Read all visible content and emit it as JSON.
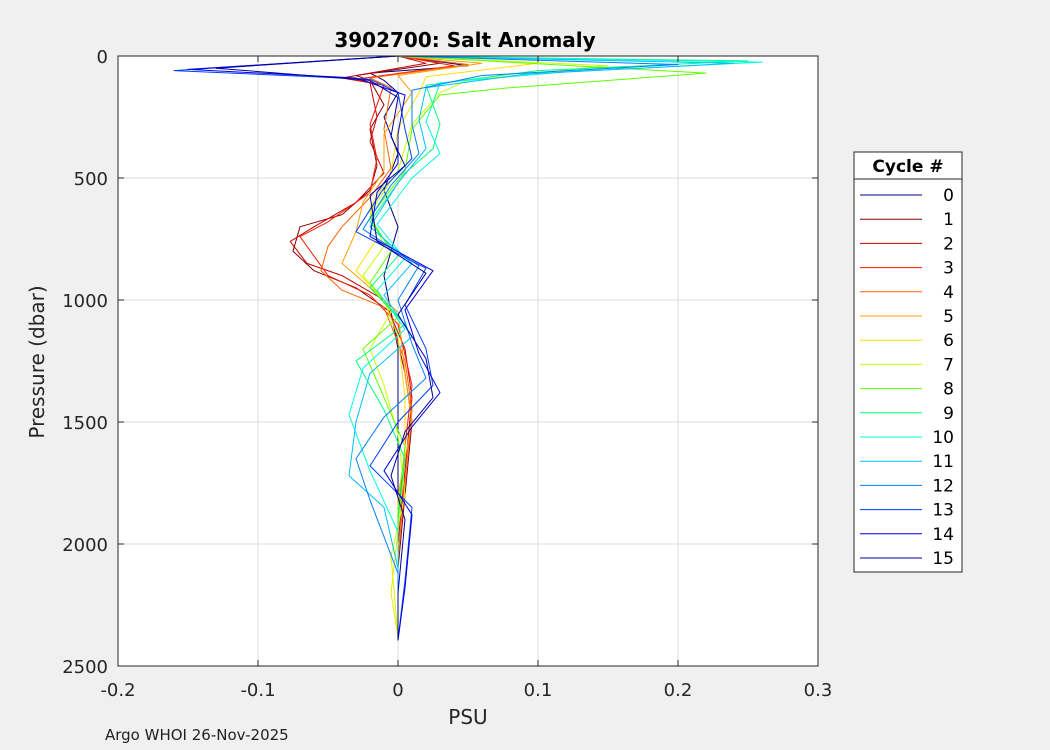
{
  "chart_data": {
    "type": "line",
    "title": "3902700: Salt Anomaly",
    "xlabel": "PSU",
    "ylabel": "Pressure (dbar)",
    "xlim": [
      -0.2,
      0.3
    ],
    "ylim": [
      0,
      2500
    ],
    "y_reversed": true,
    "grid": true,
    "xticks": [
      -0.2,
      -0.1,
      0,
      0.1,
      0.2,
      0.3
    ],
    "xtick_labels": [
      "-0.2",
      "-0.1",
      "0",
      "0.1",
      "0.2",
      "0.3"
    ],
    "yticks": [
      0,
      500,
      1000,
      1500,
      2000,
      2500
    ],
    "ytick_labels": [
      "0",
      "500",
      "1000",
      "1500",
      "2000",
      "2500"
    ],
    "legend_title": "Cycle #",
    "legend_position": "right-outside",
    "series": [
      {
        "name": "0",
        "color": "#00007f",
        "points": [
          [
            0.0,
            0
          ],
          [
            0.05,
            40
          ],
          [
            -0.02,
            70
          ],
          [
            -0.01,
            100
          ],
          [
            0.0,
            150
          ],
          [
            -0.01,
            250
          ],
          [
            0.0,
            400
          ],
          [
            -0.01,
            550
          ],
          [
            0.0,
            700
          ],
          [
            -0.01,
            900
          ],
          [
            0.0,
            1200
          ],
          [
            0.0,
            1600
          ],
          [
            0.0,
            2000
          ],
          [
            0.0,
            2390
          ]
        ]
      },
      {
        "name": "1",
        "color": "#8b0000",
        "points": [
          [
            0.0,
            0
          ],
          [
            0.03,
            30
          ],
          [
            -0.03,
            80
          ],
          [
            -0.02,
            100
          ],
          [
            -0.01,
            200
          ],
          [
            -0.02,
            300
          ],
          [
            -0.015,
            450
          ],
          [
            -0.02,
            550
          ],
          [
            -0.04,
            650
          ],
          [
            -0.07,
            700
          ],
          [
            -0.075,
            800
          ],
          [
            -0.06,
            880
          ],
          [
            -0.03,
            950
          ],
          [
            -0.005,
            1050
          ],
          [
            0.005,
            1300
          ],
          [
            0.01,
            1500
          ],
          [
            0.005,
            1800
          ],
          [
            0.0,
            2100
          ],
          [
            0.0,
            2380
          ]
        ]
      },
      {
        "name": "2",
        "color": "#c80000",
        "points": [
          [
            0.0,
            0
          ],
          [
            0.02,
            30
          ],
          [
            -0.04,
            90
          ],
          [
            -0.02,
            110
          ],
          [
            -0.015,
            250
          ],
          [
            -0.02,
            350
          ],
          [
            -0.01,
            480
          ],
          [
            -0.03,
            600
          ],
          [
            -0.06,
            700
          ],
          [
            -0.077,
            760
          ],
          [
            -0.065,
            850
          ],
          [
            -0.04,
            900
          ],
          [
            -0.01,
            1000
          ],
          [
            0.005,
            1200
          ],
          [
            0.01,
            1400
          ],
          [
            0.005,
            1700
          ],
          [
            0.0,
            2000
          ],
          [
            0.0,
            2370
          ]
        ]
      },
      {
        "name": "3",
        "color": "#ff1a00",
        "points": [
          [
            0.0,
            0
          ],
          [
            0.04,
            40
          ],
          [
            -0.03,
            95
          ],
          [
            -0.01,
            120
          ],
          [
            -0.02,
            280
          ],
          [
            -0.015,
            420
          ],
          [
            -0.02,
            560
          ],
          [
            -0.05,
            680
          ],
          [
            -0.07,
            740
          ],
          [
            -0.06,
            820
          ],
          [
            -0.05,
            900
          ],
          [
            -0.02,
            980
          ],
          [
            0.0,
            1100
          ],
          [
            0.01,
            1350
          ],
          [
            0.005,
            1600
          ],
          [
            0.0,
            1900
          ],
          [
            0.0,
            2380
          ]
        ]
      },
      {
        "name": "4",
        "color": "#ff6000",
        "points": [
          [
            0.0,
            0
          ],
          [
            0.05,
            35
          ],
          [
            -0.02,
            90
          ],
          [
            -0.005,
            130
          ],
          [
            -0.01,
            300
          ],
          [
            -0.005,
            460
          ],
          [
            -0.02,
            580
          ],
          [
            -0.04,
            700
          ],
          [
            -0.05,
            780
          ],
          [
            -0.055,
            880
          ],
          [
            -0.04,
            960
          ],
          [
            -0.01,
            1030
          ],
          [
            0.005,
            1250
          ],
          [
            0.01,
            1450
          ],
          [
            0.005,
            1750
          ],
          [
            0.0,
            2050
          ],
          [
            0.0,
            2375
          ]
        ]
      },
      {
        "name": "5",
        "color": "#ff9f00",
        "points": [
          [
            0.0,
            0
          ],
          [
            0.06,
            30
          ],
          [
            0.0,
            80
          ],
          [
            0.01,
            150
          ],
          [
            -0.01,
            320
          ],
          [
            -0.01,
            470
          ],
          [
            -0.025,
            600
          ],
          [
            -0.03,
            720
          ],
          [
            -0.04,
            850
          ],
          [
            -0.02,
            950
          ],
          [
            0.0,
            1050
          ],
          [
            0.005,
            1300
          ],
          [
            0.01,
            1500
          ],
          [
            0.0,
            1800
          ],
          [
            0.0,
            2100
          ],
          [
            0.0,
            2380
          ]
        ]
      },
      {
        "name": "6",
        "color": "#ffdf00",
        "points": [
          [
            0.0,
            0
          ],
          [
            0.1,
            30
          ],
          [
            0.02,
            85
          ],
          [
            0.015,
            150
          ],
          [
            0.0,
            300
          ],
          [
            -0.005,
            480
          ],
          [
            -0.02,
            620
          ],
          [
            -0.015,
            750
          ],
          [
            -0.03,
            880
          ],
          [
            -0.01,
            1000
          ],
          [
            0.0,
            1150
          ],
          [
            0.005,
            1400
          ],
          [
            0.005,
            1650
          ],
          [
            0.0,
            1950
          ],
          [
            -0.005,
            2200
          ],
          [
            0.0,
            2380
          ]
        ]
      },
      {
        "name": "7",
        "color": "#c8ff00",
        "points": [
          [
            0.0,
            0
          ],
          [
            0.15,
            40
          ],
          [
            0.05,
            100
          ],
          [
            0.03,
            150
          ],
          [
            0.01,
            280
          ],
          [
            0.0,
            470
          ],
          [
            -0.02,
            640
          ],
          [
            -0.01,
            780
          ],
          [
            -0.025,
            900
          ],
          [
            -0.005,
            1050
          ],
          [
            -0.02,
            1200
          ],
          [
            -0.01,
            1350
          ],
          [
            0.0,
            1550
          ],
          [
            0.005,
            1800
          ],
          [
            -0.005,
            2050
          ],
          [
            0.0,
            2380
          ]
        ]
      },
      {
        "name": "8",
        "color": "#5fff00",
        "points": [
          [
            0.0,
            0
          ],
          [
            0.22,
            70
          ],
          [
            0.08,
            130
          ],
          [
            0.03,
            160
          ],
          [
            0.01,
            300
          ],
          [
            0.005,
            470
          ],
          [
            -0.02,
            660
          ],
          [
            -0.005,
            800
          ],
          [
            -0.02,
            930
          ],
          [
            0.0,
            1070
          ],
          [
            -0.025,
            1200
          ],
          [
            -0.01,
            1400
          ],
          [
            0.005,
            1600
          ],
          [
            0.0,
            1850
          ],
          [
            0.0,
            2100
          ],
          [
            0.0,
            2380
          ]
        ]
      },
      {
        "name": "9",
        "color": "#00ff7f",
        "points": [
          [
            0.0,
            0
          ],
          [
            0.25,
            20
          ],
          [
            0.1,
            60
          ],
          [
            0.02,
            120
          ],
          [
            0.03,
            280
          ],
          [
            0.025,
            380
          ],
          [
            0.005,
            480
          ],
          [
            -0.02,
            680
          ],
          [
            0.0,
            820
          ],
          [
            -0.02,
            950
          ],
          [
            0.005,
            1100
          ],
          [
            -0.03,
            1250
          ],
          [
            -0.01,
            1450
          ],
          [
            0.005,
            1650
          ],
          [
            0.0,
            1900
          ],
          [
            0.0,
            2380
          ]
        ]
      },
      {
        "name": "10",
        "color": "#00ffdf",
        "points": [
          [
            0.0,
            0
          ],
          [
            0.26,
            25
          ],
          [
            0.12,
            65
          ],
          [
            0.03,
            110
          ],
          [
            0.02,
            270
          ],
          [
            0.03,
            400
          ],
          [
            0.01,
            500
          ],
          [
            -0.015,
            690
          ],
          [
            0.005,
            830
          ],
          [
            -0.015,
            960
          ],
          [
            0.005,
            1120
          ],
          [
            -0.025,
            1280
          ],
          [
            -0.035,
            1470
          ],
          [
            -0.02,
            1700
          ],
          [
            0.0,
            1950
          ],
          [
            0.0,
            2380
          ]
        ]
      },
      {
        "name": "11",
        "color": "#00bfff",
        "points": [
          [
            0.0,
            0
          ],
          [
            0.24,
            30
          ],
          [
            0.09,
            75
          ],
          [
            0.02,
            130
          ],
          [
            0.015,
            260
          ],
          [
            0.02,
            380
          ],
          [
            0.0,
            520
          ],
          [
            -0.02,
            700
          ],
          [
            0.01,
            850
          ],
          [
            -0.01,
            980
          ],
          [
            0.01,
            1150
          ],
          [
            -0.02,
            1300
          ],
          [
            -0.03,
            1500
          ],
          [
            -0.035,
            1720
          ],
          [
            -0.01,
            1850
          ],
          [
            0.0,
            2100
          ],
          [
            0.0,
            2385
          ]
        ]
      },
      {
        "name": "12",
        "color": "#007fff",
        "points": [
          [
            0.0,
            0
          ],
          [
            0.2,
            35
          ],
          [
            0.06,
            80
          ],
          [
            0.01,
            140
          ],
          [
            0.01,
            280
          ],
          [
            0.015,
            400
          ],
          [
            -0.005,
            530
          ],
          [
            -0.025,
            710
          ],
          [
            0.015,
            860
          ],
          [
            0.0,
            1000
          ],
          [
            0.01,
            1180
          ],
          [
            0.02,
            1320
          ],
          [
            -0.01,
            1480
          ],
          [
            -0.03,
            1650
          ],
          [
            -0.02,
            1820
          ],
          [
            0.0,
            2120
          ],
          [
            0.0,
            2390
          ]
        ]
      },
      {
        "name": "13",
        "color": "#003fff",
        "points": [
          [
            0.0,
            0
          ],
          [
            -0.16,
            60
          ],
          [
            -0.02,
            95
          ],
          [
            0.0,
            150
          ],
          [
            0.005,
            300
          ],
          [
            0.01,
            420
          ],
          [
            -0.01,
            540
          ],
          [
            -0.03,
            720
          ],
          [
            0.02,
            870
          ],
          [
            0.005,
            1020
          ],
          [
            0.02,
            1200
          ],
          [
            0.025,
            1350
          ],
          [
            0.0,
            1500
          ],
          [
            -0.02,
            1680
          ],
          [
            0.01,
            1850
          ],
          [
            0.005,
            2150
          ],
          [
            0.0,
            2390
          ]
        ]
      },
      {
        "name": "14",
        "color": "#0000df",
        "points": [
          [
            0.0,
            0
          ],
          [
            -0.15,
            55
          ],
          [
            -0.03,
            90
          ],
          [
            0.005,
            160
          ],
          [
            0.0,
            320
          ],
          [
            0.0,
            440
          ],
          [
            -0.015,
            560
          ],
          [
            -0.02,
            740
          ],
          [
            0.025,
            880
          ],
          [
            0.005,
            1040
          ],
          [
            0.015,
            1220
          ],
          [
            0.03,
            1380
          ],
          [
            0.01,
            1520
          ],
          [
            -0.01,
            1700
          ],
          [
            0.01,
            1880
          ],
          [
            0.005,
            2180
          ],
          [
            0.0,
            2395
          ]
        ]
      },
      {
        "name": "15",
        "color": "#00009f",
        "points": [
          [
            0.0,
            0
          ],
          [
            -0.13,
            50
          ],
          [
            -0.02,
            100
          ],
          [
            0.0,
            170
          ],
          [
            -0.005,
            330
          ],
          [
            0.005,
            450
          ],
          [
            -0.02,
            570
          ],
          [
            -0.015,
            760
          ],
          [
            0.02,
            890
          ],
          [
            0.0,
            1060
          ],
          [
            0.02,
            1240
          ],
          [
            0.025,
            1400
          ],
          [
            0.005,
            1540
          ],
          [
            -0.005,
            1720
          ],
          [
            0.005,
            1900
          ],
          [
            0.0,
            2200
          ],
          [
            0.0,
            2395
          ]
        ]
      }
    ]
  },
  "footer_text": "Argo WHOI 26-Nov-2025"
}
